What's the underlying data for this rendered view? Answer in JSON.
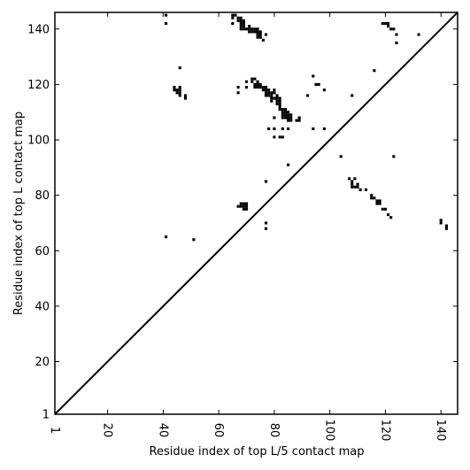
{
  "chart_data": {
    "type": "heatmap",
    "title": "",
    "xlabel": "Residue index of top L/5 contact map",
    "ylabel": "Residue index of top L contact map",
    "xlim": [
      1,
      146
    ],
    "ylim": [
      1,
      146
    ],
    "xticks": [
      1,
      20,
      40,
      60,
      80,
      100,
      120,
      140
    ],
    "yticks": [
      1,
      20,
      40,
      60,
      80,
      100,
      120,
      140
    ],
    "diagonal": true,
    "cell_color": "#000000",
    "background_color": "#ffffff",
    "points": [
      [
        41,
        145
      ],
      [
        41,
        142
      ],
      [
        65,
        145
      ],
      [
        65,
        144
      ],
      [
        65,
        142
      ],
      [
        67,
        144
      ],
      [
        67,
        143
      ],
      [
        68,
        144
      ],
      [
        68,
        143
      ],
      [
        68,
        142
      ],
      [
        69,
        143
      ],
      [
        69,
        142
      ],
      [
        68,
        141
      ],
      [
        68,
        140
      ],
      [
        69,
        141
      ],
      [
        69,
        140
      ],
      [
        70,
        140
      ],
      [
        71,
        141
      ],
      [
        71,
        140
      ],
      [
        71,
        139
      ],
      [
        72,
        140
      ],
      [
        72,
        139
      ],
      [
        73,
        140
      ],
      [
        73,
        139
      ],
      [
        74,
        140
      ],
      [
        74,
        139
      ],
      [
        74,
        138
      ],
      [
        74,
        137
      ],
      [
        75,
        139
      ],
      [
        75,
        138
      ],
      [
        75,
        137
      ],
      [
        76,
        136
      ],
      [
        77,
        138
      ],
      [
        66,
        145
      ],
      [
        119,
        142
      ],
      [
        120,
        142
      ],
      [
        121,
        142
      ],
      [
        121,
        141
      ],
      [
        122,
        140
      ],
      [
        123,
        140
      ],
      [
        124,
        138
      ],
      [
        124,
        135
      ],
      [
        132,
        138
      ],
      [
        46,
        126
      ],
      [
        116,
        125
      ],
      [
        94,
        123
      ],
      [
        72,
        122
      ],
      [
        73,
        122
      ],
      [
        72,
        121
      ],
      [
        74,
        121
      ],
      [
        70,
        121
      ],
      [
        73,
        120
      ],
      [
        74,
        120
      ],
      [
        75,
        120
      ],
      [
        73,
        119
      ],
      [
        74,
        119
      ],
      [
        75,
        119
      ],
      [
        95,
        120
      ],
      [
        96,
        120
      ],
      [
        44,
        119
      ],
      [
        46,
        119
      ],
      [
        67,
        119
      ],
      [
        70,
        119
      ],
      [
        76,
        119
      ],
      [
        77,
        119
      ],
      [
        44,
        118
      ],
      [
        45,
        118
      ],
      [
        46,
        118
      ],
      [
        76,
        118
      ],
      [
        77,
        118
      ],
      [
        78,
        118
      ],
      [
        80,
        118
      ],
      [
        98,
        118
      ],
      [
        45,
        117
      ],
      [
        46,
        117
      ],
      [
        67,
        117
      ],
      [
        77,
        117
      ],
      [
        78,
        117
      ],
      [
        79,
        117
      ],
      [
        80,
        117
      ],
      [
        46,
        116
      ],
      [
        48,
        116
      ],
      [
        77,
        116
      ],
      [
        78,
        116
      ],
      [
        79,
        116
      ],
      [
        81,
        116
      ],
      [
        92,
        116
      ],
      [
        108,
        116
      ],
      [
        48,
        115
      ],
      [
        79,
        115
      ],
      [
        80,
        115
      ],
      [
        81,
        115
      ],
      [
        82,
        115
      ],
      [
        79,
        114
      ],
      [
        81,
        114
      ],
      [
        82,
        114
      ],
      [
        81,
        113
      ],
      [
        82,
        113
      ],
      [
        82,
        112
      ],
      [
        82,
        111
      ],
      [
        83,
        111
      ],
      [
        84,
        111
      ],
      [
        83,
        110
      ],
      [
        84,
        110
      ],
      [
        85,
        110
      ],
      [
        83,
        109
      ],
      [
        84,
        109
      ],
      [
        85,
        109
      ],
      [
        86,
        109
      ],
      [
        80,
        108
      ],
      [
        83,
        108
      ],
      [
        84,
        108
      ],
      [
        85,
        108
      ],
      [
        86,
        108
      ],
      [
        89,
        108
      ],
      [
        85,
        107
      ],
      [
        86,
        107
      ],
      [
        88,
        107
      ],
      [
        89,
        107
      ],
      [
        78,
        104
      ],
      [
        80,
        104
      ],
      [
        83,
        104
      ],
      [
        85,
        104
      ],
      [
        94,
        104
      ],
      [
        98,
        104
      ],
      [
        80,
        101
      ],
      [
        82,
        101
      ],
      [
        83,
        101
      ],
      [
        104,
        94
      ],
      [
        123,
        94
      ],
      [
        85,
        91
      ],
      [
        107,
        86
      ],
      [
        109,
        86
      ],
      [
        77,
        85
      ],
      [
        108,
        85
      ],
      [
        108,
        84
      ],
      [
        110,
        84
      ],
      [
        108,
        83
      ],
      [
        109,
        83
      ],
      [
        110,
        83
      ],
      [
        111,
        82
      ],
      [
        113,
        82
      ],
      [
        115,
        80
      ],
      [
        115,
        79
      ],
      [
        116,
        79
      ],
      [
        117,
        78
      ],
      [
        118,
        78
      ],
      [
        117,
        77
      ],
      [
        118,
        77
      ],
      [
        119,
        75
      ],
      [
        120,
        75
      ],
      [
        121,
        73
      ],
      [
        122,
        72
      ],
      [
        140,
        71
      ],
      [
        140,
        70
      ],
      [
        142,
        69
      ],
      [
        142,
        68
      ],
      [
        67,
        76
      ],
      [
        68,
        76
      ],
      [
        69,
        76
      ],
      [
        70,
        76
      ],
      [
        68,
        77
      ],
      [
        69,
        77
      ],
      [
        70,
        77
      ],
      [
        69,
        75
      ],
      [
        70,
        75
      ],
      [
        77,
        70
      ],
      [
        77,
        68
      ],
      [
        41,
        65
      ],
      [
        51,
        64
      ]
    ]
  }
}
